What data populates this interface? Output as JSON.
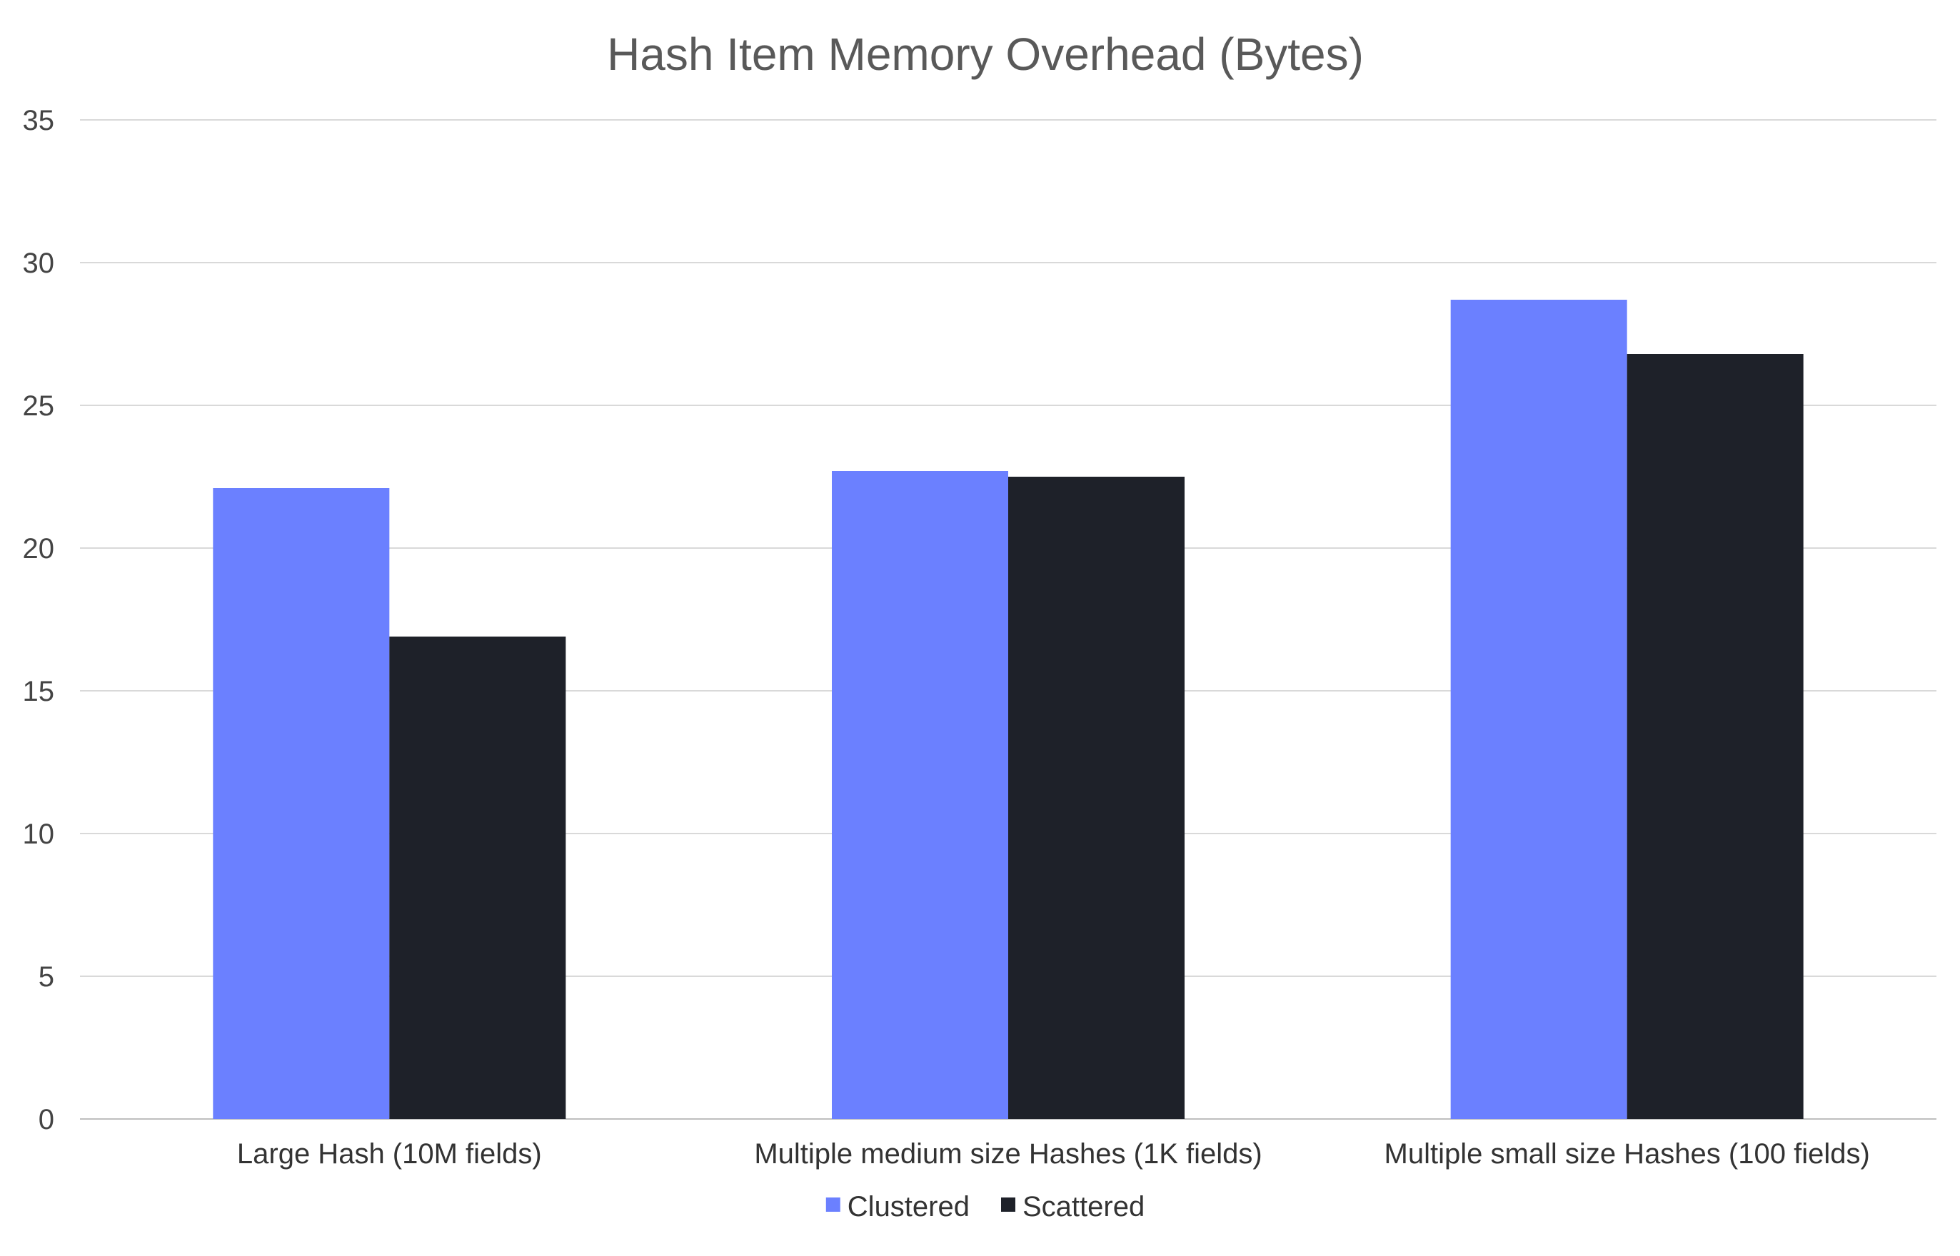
{
  "chart_data": {
    "type": "bar",
    "title": "Hash Item Memory Overhead (Bytes)",
    "categories": [
      "Large Hash (10M fields)",
      "Multiple medium size Hashes (1K fields)",
      "Multiple small size Hashes (100 fields)"
    ],
    "series": [
      {
        "name": "Clustered",
        "color": "#6B80FF",
        "values": [
          22.1,
          22.7,
          28.7
        ]
      },
      {
        "name": "Scattered",
        "color": "#1E2129",
        "values": [
          16.9,
          22.5,
          26.8
        ]
      }
    ],
    "ylim": [
      0,
      35
    ],
    "yticks": [
      0,
      5,
      10,
      15,
      20,
      25,
      30,
      35
    ],
    "grid": true,
    "legend_position": "bottom"
  }
}
